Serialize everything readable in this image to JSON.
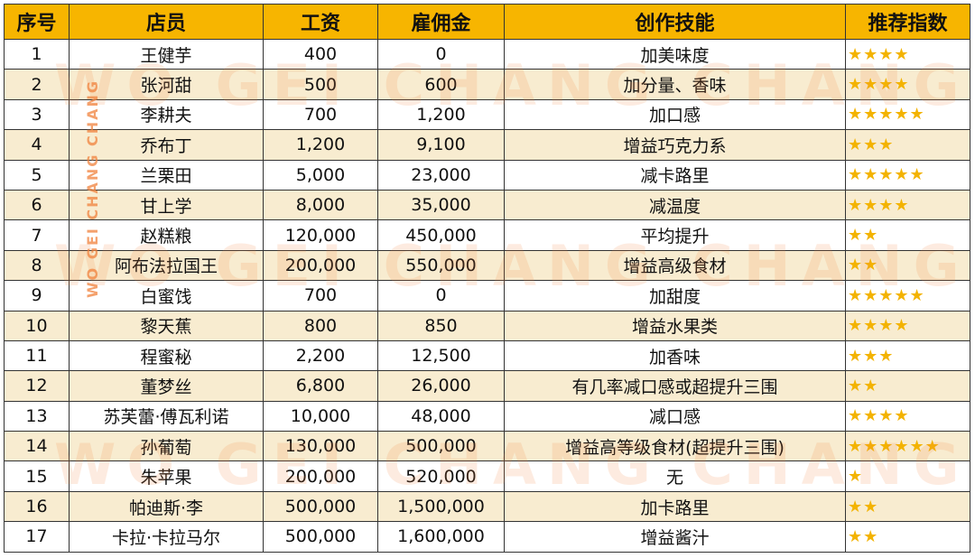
{
  "table": {
    "header": [
      "序号",
      "店员",
      "工资",
      "雇佣金",
      "创作技能",
      "推荐指数"
    ],
    "rows": [
      [
        "1",
        "王健芋",
        "400",
        "0",
        "加美味度",
        "★★★★"
      ],
      [
        "2",
        "张河甜",
        "500",
        "600",
        "加分量、香味",
        "★★★★"
      ],
      [
        "3",
        "李耕夫",
        "700",
        "1,200",
        "加口感",
        "★★★★★"
      ],
      [
        "4",
        "乔布丁",
        "1,200",
        "9,100",
        "增益巧克力系",
        "★★★"
      ],
      [
        "5",
        "兰栗田",
        "5,000",
        "23,000",
        "减卡路里",
        "★★★★★"
      ],
      [
        "6",
        "甘上学",
        "8,000",
        "35,000",
        "减温度",
        "★★★★"
      ],
      [
        "7",
        "赵糕粮",
        "120,000",
        "450,000",
        "平均提升",
        "★★"
      ],
      [
        "8",
        "阿布法拉国王",
        "200,000",
        "550,000",
        "增益高级食材",
        "★★"
      ],
      [
        "9",
        "白蜜饯",
        "700",
        "0",
        "加甜度",
        "★★★★★"
      ],
      [
        "10",
        "黎天蕉",
        "800",
        "850",
        "增益水果类",
        "★★★★"
      ],
      [
        "11",
        "程蜜秘",
        "2,200",
        "12,500",
        "加香味",
        "★★★"
      ],
      [
        "12",
        "董梦丝",
        "6,800",
        "26,000",
        "有几率减口感或超提升三围",
        "★★"
      ],
      [
        "13",
        "苏芙蕾·傅瓦利诺",
        "10,000",
        "48,000",
        "减口感",
        "★★★★"
      ],
      [
        "14",
        "孙葡萄",
        "130,000",
        "500,000",
        "增益高等级食材(超提升三围)",
        "★★★★★★"
      ],
      [
        "15",
        "朱苹果",
        "200,000",
        "520,000",
        "无",
        "★"
      ],
      [
        "16",
        "帕迪斯·李",
        "500,000",
        "1,500,000",
        "加卡路里",
        "★★"
      ],
      [
        "17",
        "卡拉·卡拉马尔",
        "500,000",
        "1,600,000",
        "增益酱汁",
        "★★"
      ]
    ]
  },
  "watermark": "WO GEI CHANG CHANG"
}
